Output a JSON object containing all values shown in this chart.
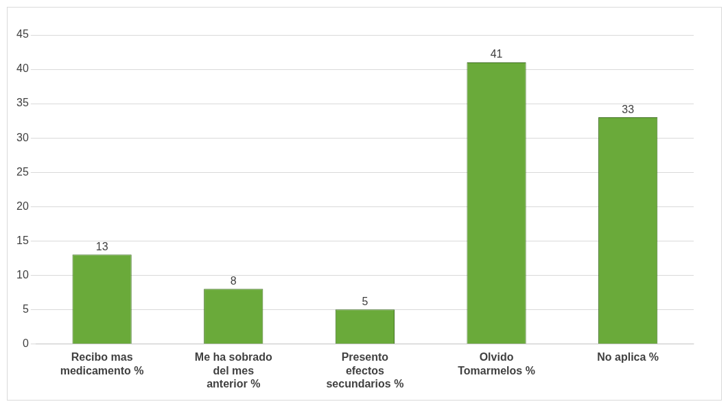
{
  "chart_data": {
    "type": "bar",
    "categories": [
      "Recibo mas medicamento %",
      "Me ha sobrado del mes anterior %",
      "Presento efectos secundarios %",
      "Olvido Tomarmelos %",
      "No aplica %"
    ],
    "values": [
      13,
      8,
      5,
      41,
      33
    ],
    "color": "#6aaa3a",
    "ylim": [
      0,
      45
    ],
    "yticks": [
      0,
      5,
      10,
      15,
      20,
      25,
      30,
      35,
      40,
      45
    ],
    "grid": "y",
    "data_labels": true,
    "legend": false
  }
}
